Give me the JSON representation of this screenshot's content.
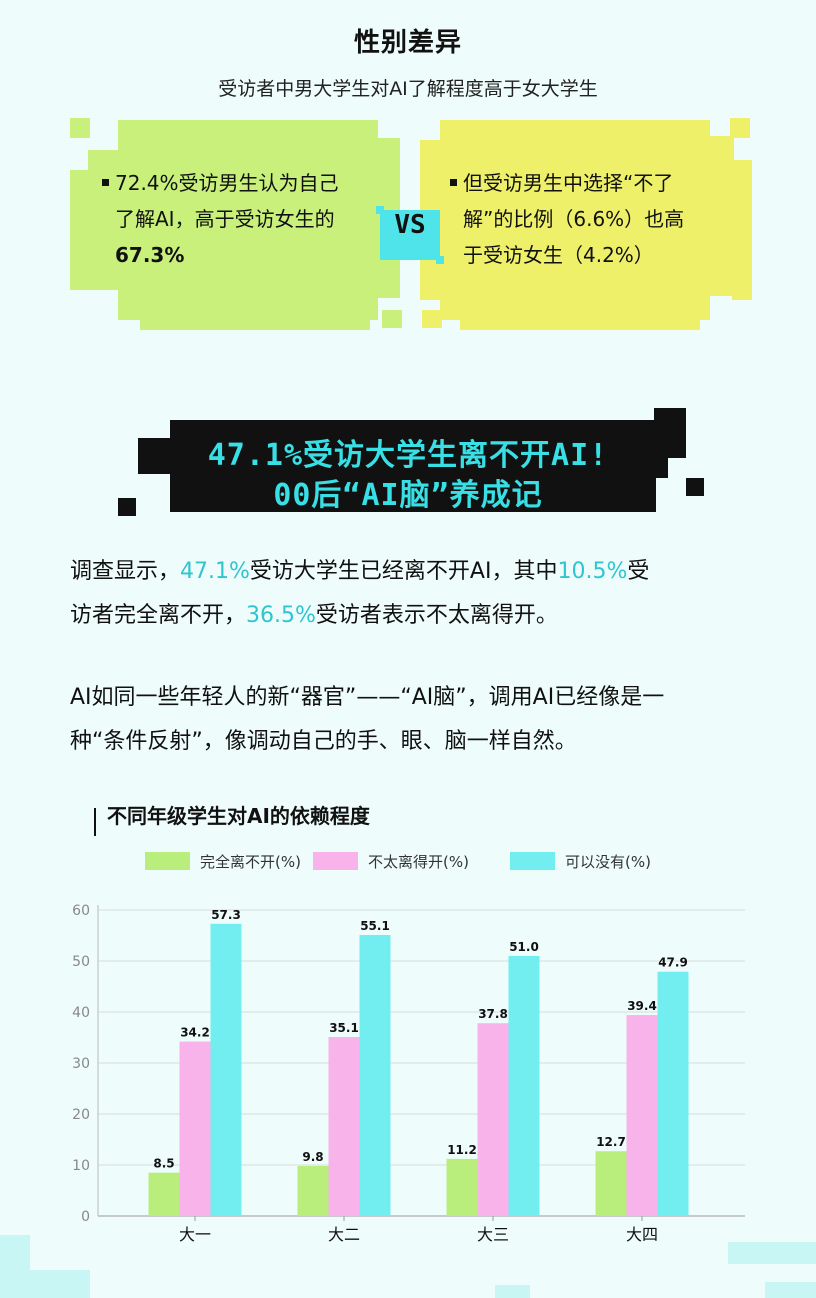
{
  "header": {
    "title": "性别差异",
    "subtitle": "受访者中男大学生对AI了解程度高于女大学生"
  },
  "comparison": {
    "left_lines": [
      "72.4%受访男生认为自己",
      "了解AI，高于受访女生的",
      "67.3%"
    ],
    "vs_label": "VS",
    "right_lines": [
      "但受访男生中选择“不了",
      "解”的比例（6.6%）也高",
      "于受访女生（4.2%）"
    ],
    "colors": {
      "left": "#c8f07a",
      "right": "#eef06a",
      "vs": "#4fe3ea"
    }
  },
  "banner": {
    "line1": "47.1%受访大学生离不开AI!",
    "line2": "00后“AI脑”养成记"
  },
  "paragraph1": {
    "l1_a": "调查显示，",
    "l1_b": "47.1%",
    "l1_c": "受访大学生已经离不开AI，其中",
    "l1_d": "10.5%",
    "l1_e": "受",
    "l2_a": "访者完全离不开，",
    "l2_b": "36.5%",
    "l2_c": "受访者表示不太离得开。"
  },
  "paragraph2": {
    "line1": "AI如同一些年轻人的新“器官”——“AI脑”，调用AI已经像是一",
    "line2": "种“条件反射”，像调动自己的手、眼、脑一样自然。"
  },
  "chart_data": {
    "type": "bar",
    "title": "不同年级学生对AI的依赖程度",
    "categories": [
      "大一",
      "大二",
      "大三",
      "大四"
    ],
    "series": [
      {
        "name": "完全离不开(%)",
        "values": [
          8.5,
          9.8,
          11.2,
          12.7
        ],
        "color": "#b9ee7c"
      },
      {
        "name": "不太离得开(%)",
        "values": [
          34.2,
          35.1,
          37.8,
          39.4
        ],
        "color": "#f7b3ea"
      },
      {
        "name": "可以没有(%)",
        "values": [
          57.3,
          55.1,
          51.0,
          47.9
        ],
        "color": "#72eef0"
      }
    ],
    "ylim": [
      0,
      60
    ],
    "yticks": [
      0,
      10,
      20,
      30,
      40,
      50,
      60
    ],
    "grid": true,
    "legend": "top"
  }
}
